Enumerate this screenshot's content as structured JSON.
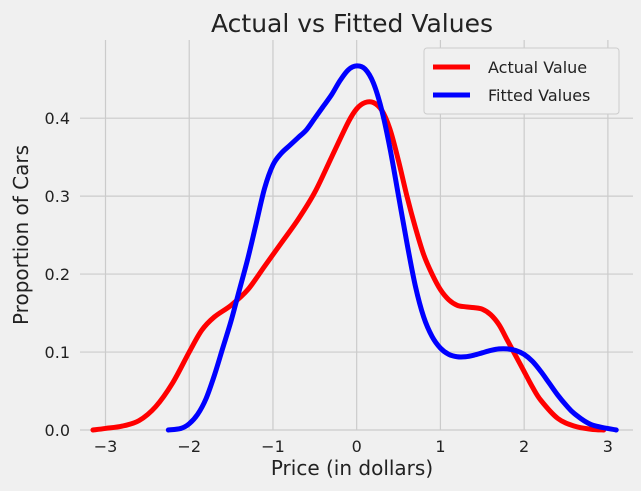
{
  "chart_data": {
    "type": "line",
    "title": "Actual vs Fitted Values",
    "xlabel": "Price (in dollars)",
    "ylabel": "Proportion of Cars",
    "xlim": [
      -3.4,
      3.3
    ],
    "ylim": [
      0.0,
      0.49
    ],
    "grid": true,
    "legend_position": "top-right",
    "x_ticks": [
      -3,
      -2,
      -1,
      0,
      1,
      2,
      3
    ],
    "x_tick_labels": [
      "−3",
      "−2",
      "−1",
      "0",
      "1",
      "2",
      "3"
    ],
    "y_ticks": [
      0.0,
      0.1,
      0.2,
      0.3,
      0.4
    ],
    "y_tick_labels": [
      "0.0",
      "0.1",
      "0.2",
      "0.3",
      "0.4"
    ],
    "series": [
      {
        "name": "Actual Value",
        "color": "#ff0000",
        "x": [
          -3.15,
          -3.0,
          -2.8,
          -2.6,
          -2.4,
          -2.2,
          -2.0,
          -1.85,
          -1.7,
          -1.5,
          -1.3,
          -1.1,
          -0.9,
          -0.7,
          -0.5,
          -0.3,
          -0.1,
          0.0,
          0.1,
          0.2,
          0.3,
          0.4,
          0.5,
          0.6,
          0.7,
          0.8,
          0.9,
          1.0,
          1.1,
          1.2,
          1.3,
          1.4,
          1.5,
          1.6,
          1.7,
          1.8,
          1.9,
          2.0,
          2.1,
          2.2,
          2.4,
          2.6,
          2.8,
          2.95
        ],
        "y": [
          0.0,
          0.002,
          0.005,
          0.012,
          0.03,
          0.06,
          0.1,
          0.128,
          0.145,
          0.16,
          0.18,
          0.21,
          0.24,
          0.27,
          0.305,
          0.35,
          0.395,
          0.412,
          0.42,
          0.42,
          0.41,
          0.385,
          0.345,
          0.3,
          0.26,
          0.225,
          0.2,
          0.18,
          0.167,
          0.16,
          0.158,
          0.157,
          0.155,
          0.148,
          0.135,
          0.115,
          0.095,
          0.075,
          0.055,
          0.038,
          0.015,
          0.005,
          0.001,
          0.0
        ]
      },
      {
        "name": "Fitted Values",
        "color": "#0000ff",
        "x": [
          -2.25,
          -2.1,
          -2.0,
          -1.9,
          -1.8,
          -1.7,
          -1.6,
          -1.5,
          -1.4,
          -1.3,
          -1.2,
          -1.1,
          -1.0,
          -0.9,
          -0.8,
          -0.7,
          -0.6,
          -0.5,
          -0.4,
          -0.3,
          -0.2,
          -0.1,
          0.0,
          0.1,
          0.2,
          0.3,
          0.4,
          0.5,
          0.6,
          0.7,
          0.8,
          0.9,
          1.0,
          1.1,
          1.2,
          1.3,
          1.4,
          1.5,
          1.6,
          1.7,
          1.8,
          1.9,
          2.0,
          2.1,
          2.2,
          2.3,
          2.4,
          2.5,
          2.6,
          2.8,
          3.1
        ],
        "y": [
          0.0,
          0.002,
          0.008,
          0.02,
          0.04,
          0.07,
          0.105,
          0.14,
          0.18,
          0.22,
          0.265,
          0.31,
          0.34,
          0.355,
          0.365,
          0.375,
          0.385,
          0.4,
          0.415,
          0.43,
          0.448,
          0.462,
          0.467,
          0.463,
          0.445,
          0.41,
          0.36,
          0.3,
          0.24,
          0.185,
          0.145,
          0.12,
          0.105,
          0.097,
          0.094,
          0.094,
          0.096,
          0.099,
          0.102,
          0.104,
          0.104,
          0.102,
          0.097,
          0.088,
          0.075,
          0.06,
          0.045,
          0.032,
          0.021,
          0.007,
          0.0
        ]
      }
    ]
  }
}
